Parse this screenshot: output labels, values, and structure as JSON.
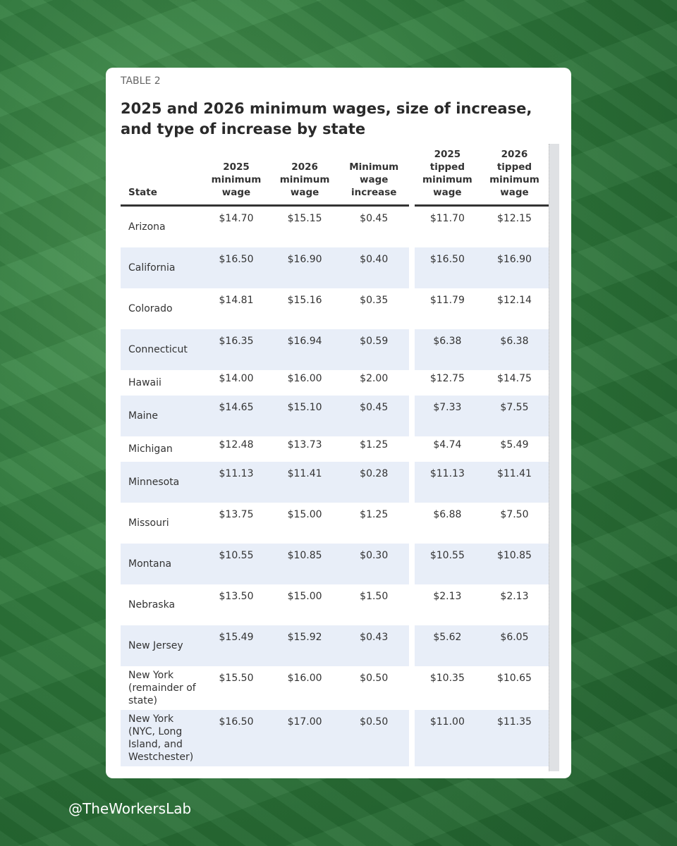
{
  "label": "TABLE 2",
  "title": "2025 and 2026 minimum wages, size of increase, and type of increase by state",
  "table": {
    "header": [
      "State",
      "2025 minimum wage",
      "2026 minimum wage",
      "Minimum wage increase",
      "2025 tipped minimum wage",
      "2026 tipped minimum wage"
    ],
    "rows": [
      [
        "Arizona",
        "$14.70",
        "$15.15",
        "$0.45",
        "$11.70",
        "$12.15"
      ],
      [
        "California",
        "$16.50",
        "$16.90",
        "$0.40",
        "$16.50",
        "$16.90"
      ],
      [
        "Colorado",
        "$14.81",
        "$15.16",
        "$0.35",
        "$11.79",
        "$12.14"
      ],
      [
        "Connecticut",
        "$16.35",
        "$16.94",
        "$0.59",
        "$6.38",
        "$6.38"
      ],
      [
        "Hawaii",
        "$14.00",
        "$16.00",
        "$2.00",
        "$12.75",
        "$14.75"
      ],
      [
        "Maine",
        "$14.65",
        "$15.10",
        "$0.45",
        "$7.33",
        "$7.55"
      ],
      [
        "Michigan",
        "$12.48",
        "$13.73",
        "$1.25",
        "$4.74",
        "$5.49"
      ],
      [
        "Minnesota",
        "$11.13",
        "$11.41",
        "$0.28",
        "$11.13",
        "$11.41"
      ],
      [
        "Missouri",
        "$13.75",
        "$15.00",
        "$1.25",
        "$6.88",
        "$7.50"
      ],
      [
        "Montana",
        "$10.55",
        "$10.85",
        "$0.30",
        "$10.55",
        "$10.85"
      ],
      [
        "Nebraska",
        "$13.50",
        "$15.00",
        "$1.50",
        "$2.13",
        "$2.13"
      ],
      [
        "New Jersey",
        "$15.49",
        "$15.92",
        "$0.43",
        "$5.62",
        "$6.05"
      ],
      [
        "New York (remainder of state)",
        "$15.50",
        "$16.00",
        "$0.50",
        "$10.35",
        "$10.65"
      ],
      [
        "New York (NYC, Long Island, and Westchester)",
        "$16.50",
        "$17.00",
        "$0.50",
        "$11.00",
        "$11.35"
      ]
    ]
  },
  "handle": "@TheWorkersLab"
}
